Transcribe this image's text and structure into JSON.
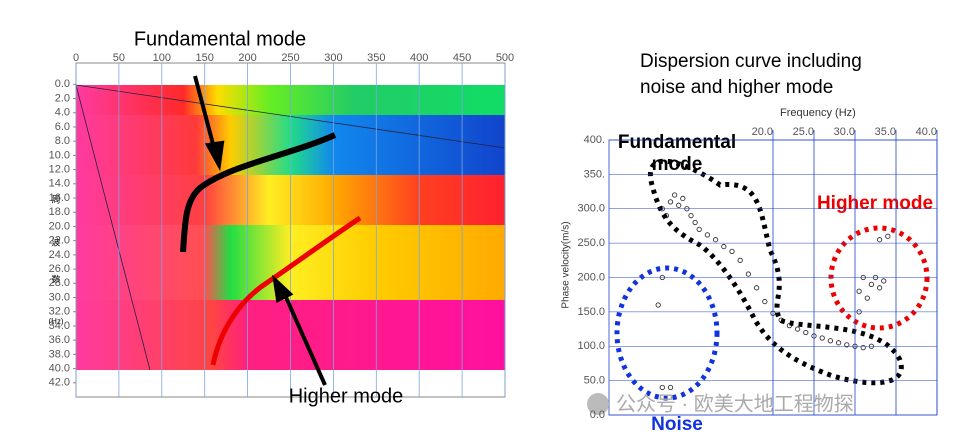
{
  "chart_data": [
    {
      "type": "heatmap",
      "annotations": [
        "Fundamental mode",
        "Higher mode"
      ],
      "y_label": [
        "周",
        "波",
        "数",
        "(Hz)"
      ],
      "xlim": [
        0,
        500
      ],
      "xticks": [
        0,
        50,
        100,
        150,
        200,
        250,
        300,
        350,
        400,
        450,
        500
      ],
      "ylim": [
        -3,
        44
      ],
      "y_inverted": true,
      "yticks": [
        {
          "value": 0,
          "label": "0.0"
        },
        {
          "value": 2,
          "label": "2.0"
        },
        {
          "value": 4,
          "label": "4.0"
        },
        {
          "value": 6,
          "label": "6.0"
        },
        {
          "value": 8,
          "label": "8.0"
        },
        {
          "value": 10,
          "label": "10.0"
        },
        {
          "value": 12,
          "label": "12.0"
        },
        {
          "value": 14,
          "label": "14.0"
        },
        {
          "value": 16,
          "label": "16.0"
        },
        {
          "value": 18,
          "label": "18.0"
        },
        {
          "value": 20,
          "label": "20.0"
        },
        {
          "value": 22,
          "label": "22.0"
        },
        {
          "value": 24,
          "label": "24.0"
        },
        {
          "value": 26,
          "label": "26.0"
        },
        {
          "value": 28,
          "label": "28.0"
        },
        {
          "value": 30,
          "label": "30.0"
        },
        {
          "value": 32,
          "label": "32.0"
        },
        {
          "value": 34,
          "label": "34.0"
        },
        {
          "value": 36,
          "label": "36.0"
        },
        {
          "value": 38,
          "label": "38.0"
        },
        {
          "value": 40,
          "label": "40.0"
        },
        {
          "value": 42,
          "label": "42.0"
        }
      ]
    },
    {
      "type": "scatter",
      "title": [
        "Dispersion curve including",
        "noise and higher mode"
      ],
      "x_label": "Frequency (Hz)",
      "y_label": "Phase velocity(m/s)",
      "annotations": [
        "Fundamental",
        "mode",
        "Higher mode",
        "Noise"
      ],
      "watermark": "公众号 · 欧美大地工程物探",
      "color": "#333333",
      "grid": true,
      "x": [
        6.5,
        7,
        7.5,
        8,
        8.5,
        9,
        9.5,
        10,
        10.5,
        11,
        12,
        13,
        14,
        15,
        16,
        17,
        18,
        19,
        20,
        21,
        22,
        23,
        24,
        25,
        26,
        27,
        28,
        29,
        30,
        31,
        32,
        6.5,
        7.5,
        6,
        6.5,
        30.5,
        31,
        31.5,
        32,
        32.5,
        33,
        33.5,
        34,
        33,
        30.5
      ],
      "values": [
        300,
        290,
        310,
        320,
        305,
        315,
        300,
        290,
        280,
        270,
        262,
        255,
        245,
        238,
        225,
        205,
        185,
        165,
        148,
        138,
        130,
        125,
        120,
        115,
        112,
        108,
        105,
        102,
        100,
        98,
        100,
        40,
        40,
        160,
        200,
        180,
        200,
        170,
        190,
        200,
        185,
        195,
        260,
        255,
        150
      ],
      "xlim": [
        0,
        40
      ],
      "xticks": [
        {
          "value": 20,
          "label": "20.0"
        },
        {
          "value": 25,
          "label": "25.0"
        },
        {
          "value": 30,
          "label": "30.0"
        },
        {
          "value": 35,
          "label": "35.0"
        },
        {
          "value": 40,
          "label": "40.0"
        }
      ],
      "ylim": [
        0,
        400
      ],
      "yticks": [
        {
          "value": 0,
          "label": "0.0"
        },
        {
          "value": 50,
          "label": "50.0"
        },
        {
          "value": 100,
          "label": "100.0"
        },
        {
          "value": 150,
          "label": "150.0"
        },
        {
          "value": 200,
          "label": "200.0"
        },
        {
          "value": 250,
          "label": "250.0"
        },
        {
          "value": 300,
          "label": "300.0"
        },
        {
          "value": 350,
          "label": "350."
        },
        {
          "value": 400,
          "label": "400."
        }
      ]
    }
  ]
}
